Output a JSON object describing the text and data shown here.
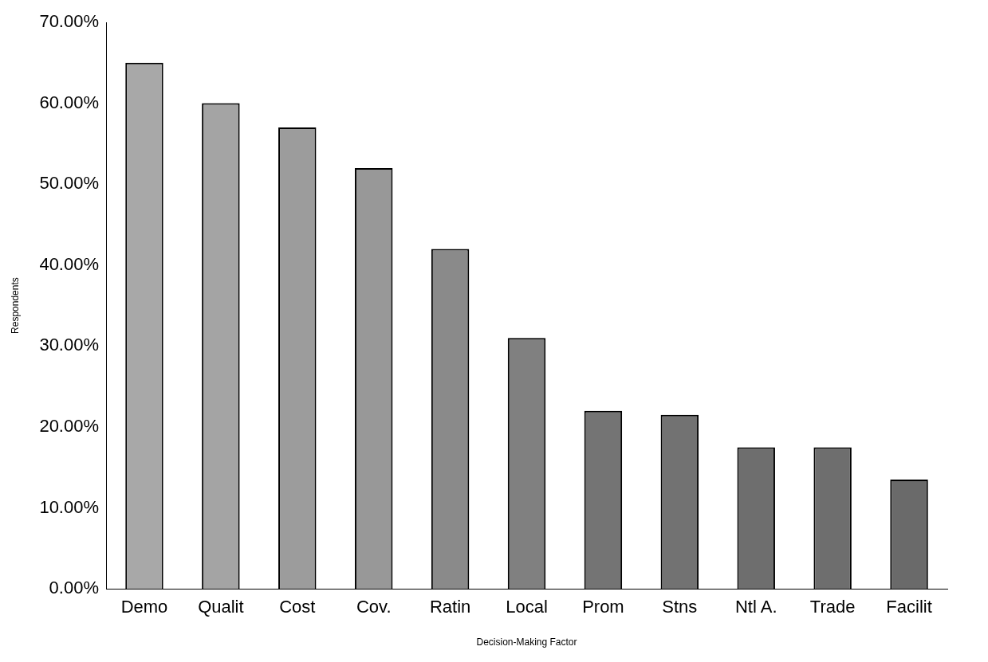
{
  "chart_data": {
    "type": "bar",
    "xlabel": "Decision-Making Factor",
    "ylabel": "Respondents",
    "categories": [
      "Demo",
      "Qualit",
      "Cost",
      "Cov.",
      "Ratin",
      "Local",
      "Prom",
      "Stns",
      "Ntl A.",
      "Trade",
      "Facilit"
    ],
    "values": [
      65,
      60,
      57,
      52,
      42,
      31,
      22,
      21.5,
      17.5,
      17.5,
      13.5
    ],
    "colors": [
      "#a8a8a8",
      "#a4a4a4",
      "#9c9c9c",
      "#989898",
      "#8a8a8a",
      "#808080",
      "#747474",
      "#727272",
      "#6e6e6e",
      "#6e6e6e",
      "#6a6a6a"
    ],
    "ylim": [
      0,
      70
    ],
    "yticks": [
      {
        "value": 0,
        "label": "0.00%"
      },
      {
        "value": 10,
        "label": "10.00%"
      },
      {
        "value": 20,
        "label": "20.00%"
      },
      {
        "value": 30,
        "label": "30.00%"
      },
      {
        "value": 40,
        "label": "40.00%"
      },
      {
        "value": 50,
        "label": "50.00%"
      },
      {
        "value": 60,
        "label": "60.00%"
      },
      {
        "value": 70,
        "label": "70.00%"
      }
    ],
    "grid": false,
    "legend": false
  }
}
